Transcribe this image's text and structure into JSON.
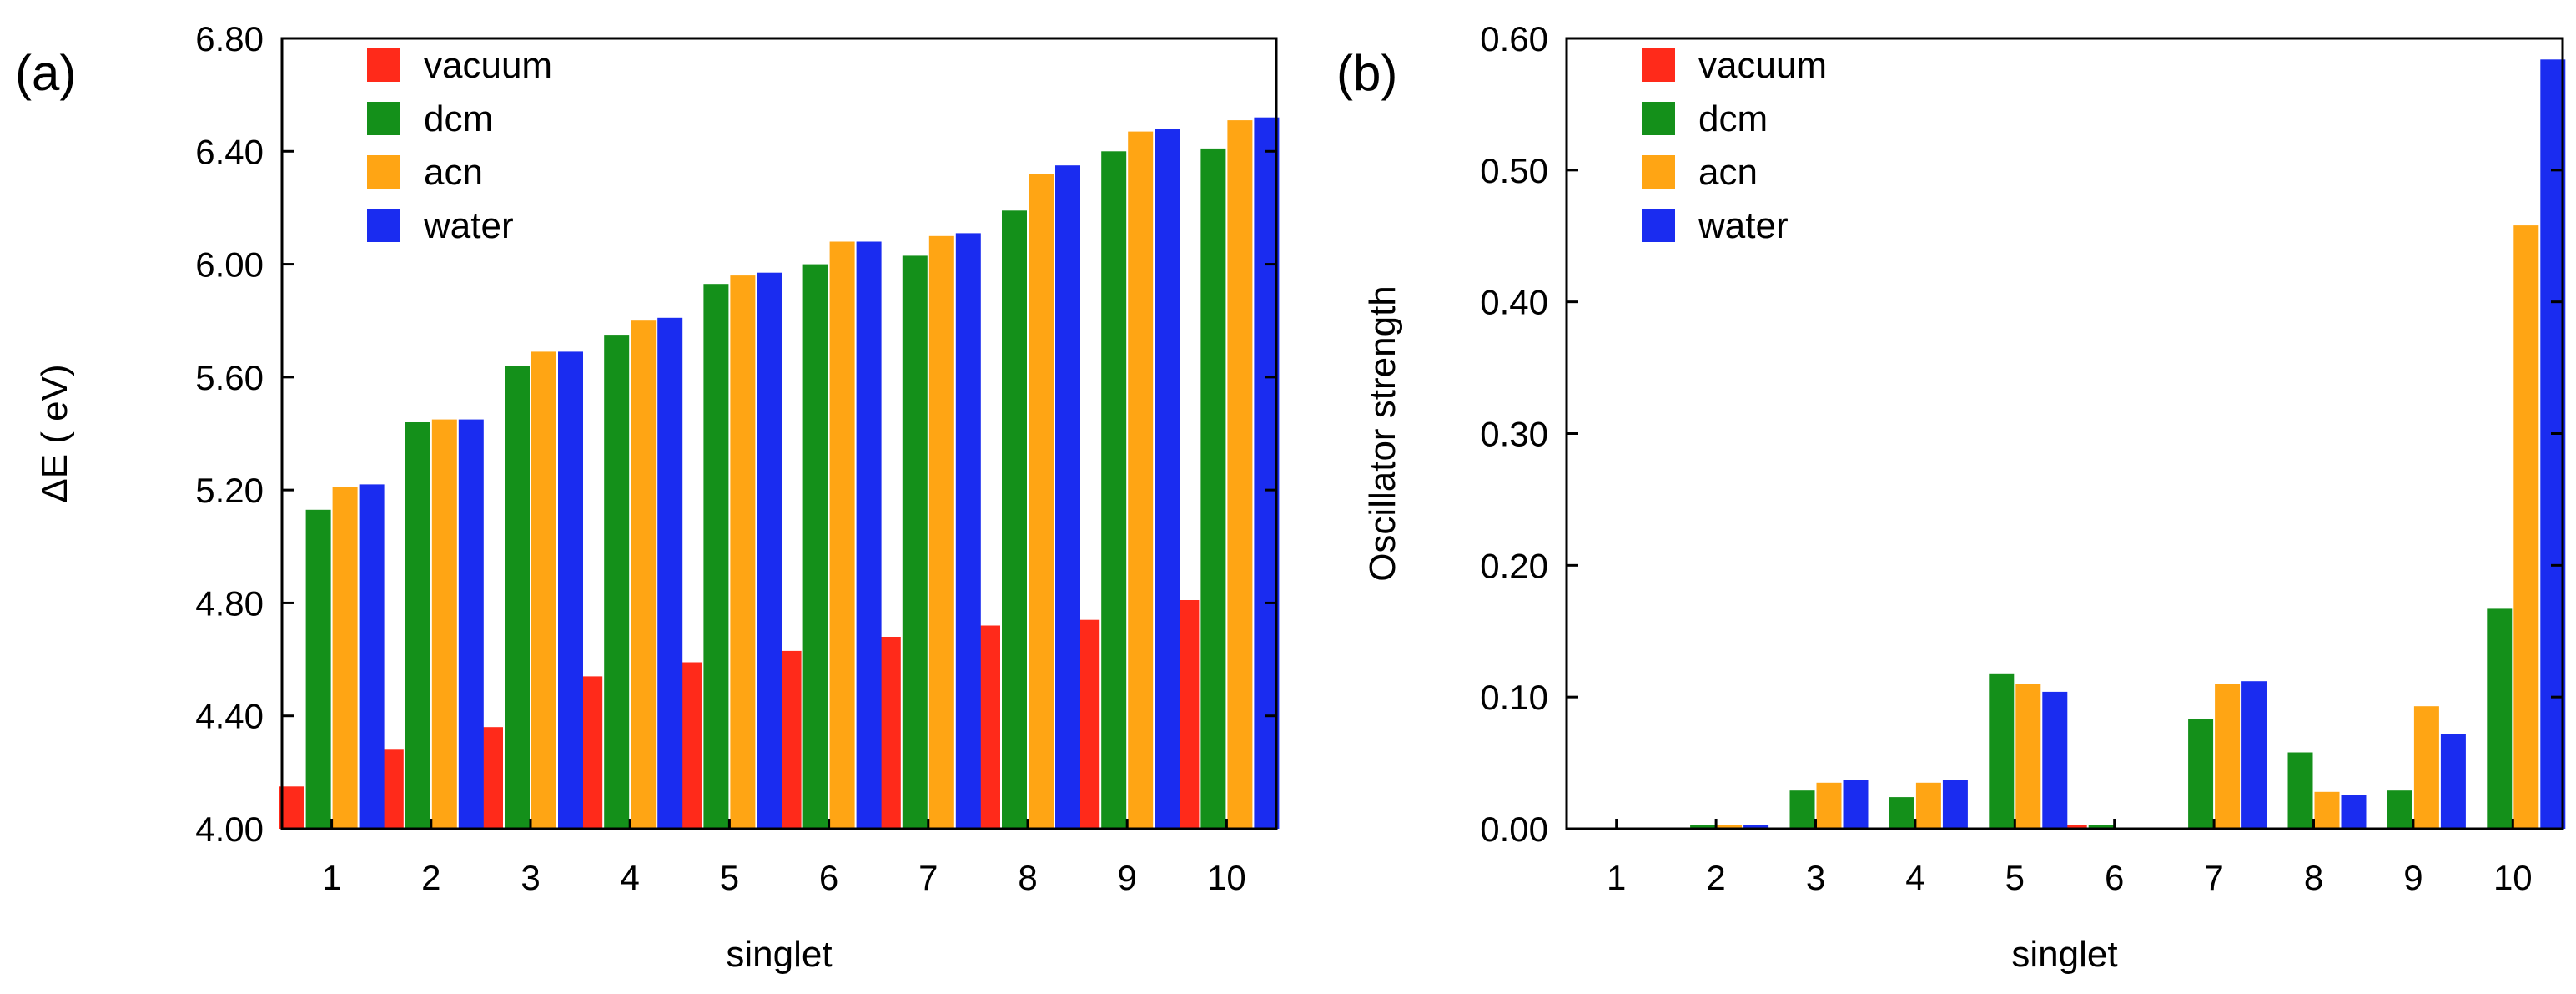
{
  "chart_data": [
    {
      "panel": "(a)",
      "type": "bar",
      "title": "",
      "xlabel": "singlet",
      "ylabel": "ΔE ( eV)",
      "ylim": [
        4.0,
        6.8
      ],
      "yticks": [
        "4.00",
        "4.40",
        "4.80",
        "5.20",
        "5.60",
        "6.00",
        "6.40",
        "6.80"
      ],
      "categories": [
        "1",
        "2",
        "3",
        "4",
        "5",
        "6",
        "7",
        "8",
        "9",
        "10"
      ],
      "legend_position": "top-left",
      "series": [
        {
          "name": "vacuum",
          "color": "#ff2a1a",
          "values": [
            4.15,
            4.28,
            4.36,
            4.54,
            4.59,
            4.63,
            4.68,
            4.72,
            4.74,
            4.81
          ]
        },
        {
          "name": "dcm",
          "color": "#14901a",
          "values": [
            5.13,
            5.44,
            5.64,
            5.75,
            5.93,
            6.0,
            6.03,
            6.19,
            6.4,
            6.41
          ]
        },
        {
          "name": "acn",
          "color": "#ffa514",
          "values": [
            5.21,
            5.45,
            5.69,
            5.8,
            5.96,
            6.08,
            6.1,
            6.32,
            6.47,
            6.51
          ]
        },
        {
          "name": "water",
          "color": "#1a2cf0",
          "values": [
            5.22,
            5.45,
            5.69,
            5.81,
            5.97,
            6.08,
            6.11,
            6.35,
            6.48,
            6.52
          ]
        }
      ]
    },
    {
      "panel": "(b)",
      "type": "bar",
      "title": "",
      "xlabel": "singlet",
      "ylabel": "Oscillator strength",
      "ylim": [
        0.0,
        0.6
      ],
      "yticks": [
        "0.00",
        "0.10",
        "0.20",
        "0.30",
        "0.40",
        "0.50",
        "0.60"
      ],
      "categories": [
        "1",
        "2",
        "3",
        "4",
        "5",
        "6",
        "7",
        "8",
        "9",
        "10"
      ],
      "legend_position": "top-left",
      "series": [
        {
          "name": "vacuum",
          "color": "#ff2a1a",
          "values": [
            0.0,
            0.0,
            0.0,
            0.0,
            0.0,
            0.003,
            0.0,
            0.0,
            0.0,
            0.0
          ]
        },
        {
          "name": "dcm",
          "color": "#14901a",
          "values": [
            0.0,
            0.003,
            0.029,
            0.024,
            0.118,
            0.003,
            0.083,
            0.058,
            0.029,
            0.167
          ]
        },
        {
          "name": "acn",
          "color": "#ffa514",
          "values": [
            0.0,
            0.003,
            0.035,
            0.035,
            0.11,
            0.0,
            0.11,
            0.028,
            0.093,
            0.458
          ]
        },
        {
          "name": "water",
          "color": "#1a2cf0",
          "values": [
            0.0,
            0.003,
            0.037,
            0.037,
            0.104,
            0.0,
            0.112,
            0.026,
            0.072,
            0.584
          ]
        }
      ]
    }
  ]
}
